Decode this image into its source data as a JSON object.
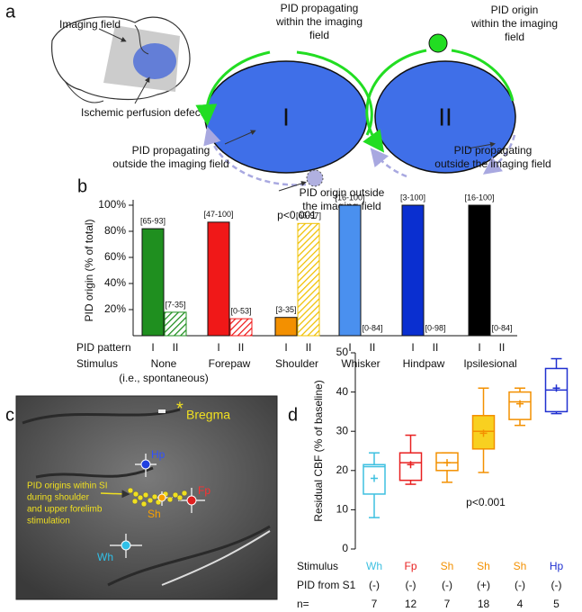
{
  "panel_a": {
    "label": "a",
    "imaging_field": "Imaging field",
    "perfusion_defect": "Ischemic perfusion defect",
    "ellipse_1": "I",
    "ellipse_2": "II",
    "propagating_within": [
      "PID propagating",
      "within the imaging",
      "field"
    ],
    "origin_within": [
      "PID origin",
      "within the imaging",
      "field"
    ],
    "propagating_outside_1": [
      "PID propagating",
      "outside the imaging field"
    ],
    "origin_outside": [
      "PID origin outside",
      "the imaging field"
    ],
    "propagating_outside_2": [
      "PID propagating",
      "outside the imaging field"
    ]
  },
  "panel_c": {
    "label": "c",
    "asterisk": "*",
    "bregma": "Bregma",
    "hp": "Hp",
    "fp": "Fp",
    "sh": "Sh",
    "wh": "Wh",
    "caption": [
      "PID origins within SI",
      "during shoulder",
      "and upper forelimb",
      "stimulation"
    ]
  },
  "chart_data": [
    {
      "type": "bar",
      "label": "b",
      "ylabel": "PID origin (% of total)",
      "ylim": [
        0,
        100
      ],
      "yticks": [
        {
          "value": 20,
          "label": "20%"
        },
        {
          "value": 40,
          "label": "40%"
        },
        {
          "value": 60,
          "label": "60%"
        },
        {
          "value": 80,
          "label": "80%"
        },
        {
          "value": 100,
          "label": "100%"
        }
      ],
      "row_labels": [
        "PID pattern",
        "Stimulus"
      ],
      "annotation": "p<0.001",
      "groups": [
        {
          "stimulus": "None",
          "note": "(i.e., spontaneous)",
          "bars": [
            {
              "pattern": "I",
              "value": 82,
              "color": "#1f8f1f",
              "hatched": false,
              "ci": "[65-93]"
            },
            {
              "pattern": "II",
              "value": 18,
              "color": "#1f8f1f",
              "hatched": true,
              "ci": "[7-35]"
            }
          ]
        },
        {
          "stimulus": "Forepaw",
          "bars": [
            {
              "pattern": "I",
              "value": 87,
              "color": "#f01818",
              "hatched": false,
              "ci": "[47-100]"
            },
            {
              "pattern": "II",
              "value": 13,
              "color": "#f01818",
              "hatched": true,
              "ci": "[0-53]"
            }
          ]
        },
        {
          "stimulus": "Shoulder",
          "bars": [
            {
              "pattern": "I",
              "value": 14,
              "color": "#f39000",
              "hatched": false,
              "ci": "[3-35]"
            },
            {
              "pattern": "II",
              "value": 86,
              "color": "#f0c000",
              "hatched": true,
              "ci": "[65-97]"
            }
          ]
        },
        {
          "stimulus": "Whisker",
          "bars": [
            {
              "pattern": "I",
              "value": 100,
              "color": "#4a90ef",
              "hatched": false,
              "ci": "[16-100]"
            },
            {
              "pattern": "II",
              "value": 0,
              "color": "#222222",
              "hatched": false,
              "ci": "[0-84]"
            }
          ]
        },
        {
          "stimulus": "Hindpaw",
          "bars": [
            {
              "pattern": "I",
              "value": 100,
              "color": "#0a2fd0",
              "hatched": false,
              "ci": "[3-100]"
            },
            {
              "pattern": "II",
              "value": 0,
              "color": "#222222",
              "hatched": false,
              "ci": "[0-98]"
            }
          ]
        },
        {
          "stimulus": "Ipsilesional",
          "bars": [
            {
              "pattern": "I",
              "value": 100,
              "color": "#000000",
              "hatched": false,
              "ci": "[16-100]"
            },
            {
              "pattern": "II",
              "value": 0,
              "color": "#222222",
              "hatched": false,
              "ci": "[0-84]"
            }
          ]
        }
      ]
    },
    {
      "type": "box",
      "label": "d",
      "ylabel": "Residual CBF (% of baseline)",
      "ylim": [
        0,
        50
      ],
      "yticks": [
        0,
        10,
        20,
        30,
        40,
        50
      ],
      "row_labels": [
        "Stimulus",
        "PID from S1",
        "n="
      ],
      "annotation": "p<0.001",
      "boxes": [
        {
          "stimulus": "Wh",
          "pid": "(-)",
          "n": 7,
          "color": "#3ec0e0",
          "min": 8,
          "q1": 14,
          "median": 21,
          "q3": 21.5,
          "max": 24.5,
          "mean": 18
        },
        {
          "stimulus": "Fp",
          "pid": "(-)",
          "n": 12,
          "color": "#e82020",
          "min": 16.5,
          "q1": 17.5,
          "median": 22,
          "q3": 24.5,
          "max": 29,
          "mean": 21.5
        },
        {
          "stimulus": "Sh",
          "pid": "(-)",
          "n": 7,
          "color": "#f39000",
          "min": 17,
          "q1": 20,
          "median": 22,
          "q3": 24.5,
          "max": 24.5,
          "mean": 22
        },
        {
          "stimulus": "Sh",
          "pid": "(+)",
          "n": 18,
          "color": "#f39000",
          "fill": "#f8d020",
          "min": 19.5,
          "q1": 25.5,
          "median": 30,
          "q3": 34,
          "max": 41,
          "mean": 29.5
        },
        {
          "stimulus": "Sh",
          "pid": "(-)",
          "n": 4,
          "color": "#f39000",
          "min": 31.5,
          "q1": 33,
          "median": 37.5,
          "q3": 40,
          "max": 41,
          "mean": 37
        },
        {
          "stimulus": "Hp",
          "pid": "(-)",
          "n": 5,
          "color": "#2030d0",
          "min": 34.5,
          "q1": 35,
          "median": 40.5,
          "q3": 46,
          "max": 48.5,
          "mean": 41
        }
      ]
    }
  ]
}
